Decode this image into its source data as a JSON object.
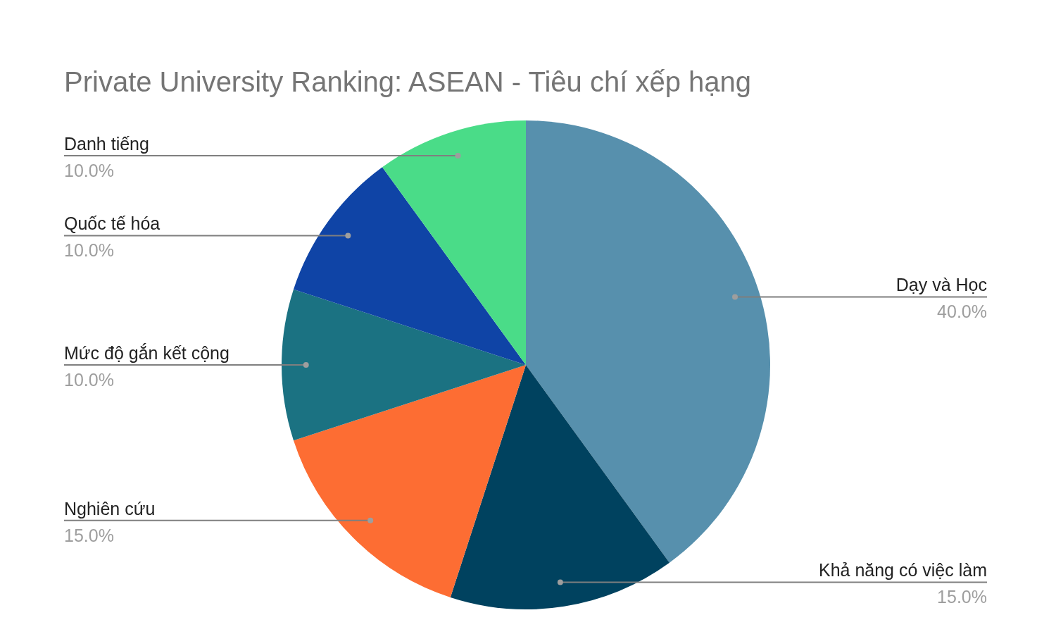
{
  "chart_data": {
    "type": "pie",
    "title": "Private University Ranking: ASEAN - Tiêu chí xếp hạng",
    "categories": [
      "Dạy và Học",
      "Khả năng có việc làm",
      "Nghiên cứu",
      "Mức độ gắn kết cộng",
      "Quốc tế hóa",
      "Danh tiếng"
    ],
    "values": [
      40,
      15,
      15,
      10,
      10,
      10
    ],
    "colors": [
      "#5790ad",
      "#00425f",
      "#fd6d33",
      "#1b7282",
      "#0f44a6",
      "#4adc88"
    ],
    "value_labels": [
      "40.0%",
      "15.0%",
      "15.0%",
      "10.0%",
      "10.0%",
      "10.0%"
    ],
    "legend": false
  }
}
